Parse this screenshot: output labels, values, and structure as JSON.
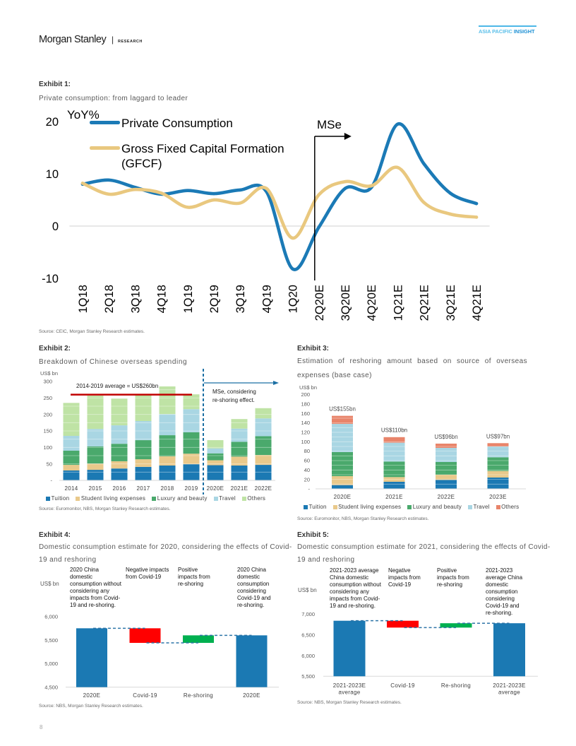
{
  "header": {
    "brand": "Morgan Stanley",
    "divider": "|",
    "section": "RESEARCH",
    "series_light": "ASIA PACIFIC ",
    "series_bold": "INSIGHT"
  },
  "exhibits": [
    {
      "label": "Exhibit 1:",
      "title": "Private consumption: from laggard to leader",
      "source": "Source: CEIC, Morgan Stanley Research estimates."
    },
    {
      "label": "Exhibit 2:",
      "title": "Breakdown of Chinese overseas spending",
      "source": "Source: Euromonitor, NBS, Morgan Stanley Research estimates."
    },
    {
      "label": "Exhibit 3:",
      "title": "Estimation of reshoring amount based on source of overseas expenses (base case)",
      "source": "Source: Euromonitor, NBS, Morgan Stanley Research estimates."
    },
    {
      "label": "Exhibit 4:",
      "title": "Domestic consumption estimate for 2020, considering the effects of Covid-19 and reshoring",
      "source": "Source: NBS, Morgan Stanley Research estimates."
    },
    {
      "label": "Exhibit 5:",
      "title": "Domestic consumption estimate for 2021, considering the effects of Covid-19 and reshoring",
      "source": "Source: NBS, Morgan Stanley Research estimates."
    }
  ],
  "page_number": "8",
  "colors": {
    "brand_blue": "#1b79b3",
    "insight_light_blue": "#5bbfe9",
    "insight_blue": "#1b8fd4",
    "average_line_red": "#c00000",
    "forecast_marker_blue": "#1b6fa3"
  },
  "chart_data": [
    {
      "type": "line",
      "title": "Private consumption: from laggard to leader",
      "xlabel": "",
      "ylabel": "YoY%",
      "categories": [
        "1Q18",
        "2Q18",
        "3Q18",
        "4Q18",
        "1Q19",
        "2Q19",
        "3Q19",
        "4Q19",
        "1Q20",
        "2Q20E",
        "3Q20E",
        "4Q20E",
        "1Q21E",
        "2Q21E",
        "3Q21E",
        "4Q21E"
      ],
      "series": [
        {
          "name": "Private Consumption",
          "color": "#1b7ab6",
          "values": [
            8.0,
            8.8,
            7.4,
            6.1,
            6.8,
            6.2,
            6.9,
            6.6,
            -8.2,
            -0.2,
            7.2,
            7.4,
            19.5,
            11.9,
            6.3,
            4.3
          ]
        },
        {
          "name": "Gross Fixed Capital Formation (GFCF)",
          "color": "#e9c87f",
          "values": [
            8.2,
            6.1,
            7.0,
            6.3,
            3.6,
            5.0,
            4.4,
            7.2,
            -2.3,
            6.0,
            8.5,
            7.7,
            11.2,
            4.5,
            2.3,
            1.7
          ]
        }
      ],
      "ylim": [
        -10,
        20
      ],
      "yticks": [
        -10,
        0,
        10,
        20
      ],
      "ytick_labels": [
        "-10",
        "0",
        "10",
        "20"
      ],
      "grid": "zero line only",
      "legend": "top-left",
      "annotation": {
        "label": "MSe",
        "starts_at": "2Q20E"
      }
    },
    {
      "type": "bar",
      "stacked": true,
      "title": "Breakdown of Chinese overseas spending",
      "xlabel": "",
      "ylabel": "US$ bn",
      "categories": [
        "2014",
        "2015",
        "2016",
        "2017",
        "2018",
        "2019",
        "2020E",
        "2021E",
        "2022E"
      ],
      "series": [
        {
          "name": "Tuition",
          "color": "#1b79b3",
          "values": [
            30,
            32,
            36,
            41,
            45,
            49,
            46,
            45,
            47
          ]
        },
        {
          "name": "Student living expenses",
          "color": "#e9c98b",
          "values": [
            17,
            19,
            22,
            23,
            28,
            32,
            15,
            27,
            30
          ]
        },
        {
          "name": "Luxury and beauty",
          "color": "#4aa96c",
          "values": [
            43,
            52,
            53,
            58,
            64,
            65,
            21,
            45,
            57
          ]
        },
        {
          "name": "Travel",
          "color": "#a9d6e3",
          "values": [
            45,
            53,
            56,
            58,
            64,
            70,
            15,
            40,
            54
          ]
        },
        {
          "name": "Others",
          "color": "#bfe3a5",
          "values": [
            100,
            101,
            81,
            81,
            84,
            45,
            25,
            29,
            31
          ]
        }
      ],
      "ylim": [
        0,
        300
      ],
      "yticks": [
        0,
        50,
        100,
        150,
        200,
        250,
        300
      ],
      "ytick_labels": [
        "-",
        "50",
        "100",
        "150",
        "200",
        "250",
        "300"
      ],
      "reference_line": {
        "value": 260,
        "label": "2014-2019 average = US$260bn",
        "span": [
          "2014",
          "2019"
        ],
        "color": "#c00000"
      },
      "annotation": {
        "lines": [
          "MSe, considering",
          "re-shoring effect."
        ],
        "starts_at": "2020E"
      },
      "legend": "bottom"
    },
    {
      "type": "bar",
      "stacked": true,
      "title": "Estimation of reshoring amount based on source of overseas expenses (base case)",
      "xlabel": "",
      "ylabel": "US$ bn",
      "categories": [
        "2020E",
        "2021E",
        "2022E",
        "2023E"
      ],
      "series": [
        {
          "name": "Tuition",
          "color": "#1b79b3",
          "values": [
            8,
            15,
            19,
            24
          ]
        },
        {
          "name": "Student living expenses",
          "color": "#e9c98b",
          "values": [
            19,
            10,
            11,
            14
          ]
        },
        {
          "name": "Luxury and beauty",
          "color": "#4aa96c",
          "values": [
            51,
            33,
            27,
            29
          ]
        },
        {
          "name": "Travel",
          "color": "#a9d6e3",
          "values": [
            60,
            40,
            30,
            23
          ]
        },
        {
          "name": "Others",
          "color": "#e8846a",
          "values": [
            17,
            12,
            9,
            7
          ]
        }
      ],
      "totals": [
        155,
        110,
        96,
        97
      ],
      "data_labels": [
        "US$155bn",
        "US$110bn",
        "US$96bn",
        "US$97bn"
      ],
      "ylim": [
        0,
        200
      ],
      "yticks": [
        0,
        20,
        40,
        60,
        80,
        100,
        120,
        140,
        160,
        180,
        200
      ],
      "ytick_labels": [
        "-",
        "20",
        "40",
        "60",
        "80",
        "100",
        "120",
        "140",
        "160",
        "180",
        "200"
      ],
      "legend": "bottom"
    },
    {
      "type": "waterfall",
      "title": "Domestic consumption estimate for 2020, considering the effects of Covid-19 and reshoring",
      "xlabel": "",
      "ylabel": "US$ bn",
      "categories": [
        "2020E",
        "Covid-19",
        "Re-shoring",
        "2020E"
      ],
      "measures": [
        "total",
        "relative",
        "relative",
        "total"
      ],
      "values": [
        5750,
        -310,
        160,
        5600
      ],
      "colors": {
        "total": "#1b79b3",
        "decrease": "#ff0000",
        "increase": "#00b050",
        "connector": "#2e75a8"
      },
      "ylim": [
        4500,
        6000
      ],
      "yticks": [
        4500,
        5000,
        5500,
        6000
      ],
      "ytick_labels": [
        "4,500",
        "5,000",
        "5,500",
        "6,000"
      ],
      "column_notes": [
        "2020 China\ndomestic\nconsumption without\nconsidering any\nimpacts from Covid-\n19 and re-shoring.",
        "Negative impacts\nfrom Covid-19",
        "Positive\nimpacts from\nre-shoring",
        "2020 China\ndomestic\nconsumption\nconsidering\nCovid-19 and\nre-shoring."
      ]
    },
    {
      "type": "waterfall",
      "title": "Domestic consumption estimate for 2021, considering the effects of Covid-19 and reshoring",
      "xlabel": "",
      "ylabel": "US$ bn",
      "categories": [
        [
          "2021-2023E",
          "average"
        ],
        [
          "Covid-19"
        ],
        [
          "Re-shoring"
        ],
        [
          "2021-2023E",
          "average"
        ]
      ],
      "measures": [
        "total",
        "relative",
        "relative",
        "total"
      ],
      "values": [
        6840,
        -165,
        105,
        6780
      ],
      "colors": {
        "total": "#1b79b3",
        "decrease": "#ff0000",
        "increase": "#00b050",
        "connector": "#2e75a8"
      },
      "ylim": [
        5500,
        7000
      ],
      "yticks": [
        5500,
        6000,
        6500,
        7000
      ],
      "ytick_labels": [
        "5,500",
        "6,000",
        "6,500",
        "7,000"
      ],
      "column_notes": [
        "2021-2023 average\nChina domestic\nconsumption without\nconsidering any\nimpacts from Covid-\n19 and re-shoring.",
        "Negative\nimpacts from\nCovid-19",
        "Positive\nimpacts from\nre-shoring",
        "2021-2023\naverage China\ndomestic\nconsumption\nconsidering\nCovid-19 and\nre-shoring."
      ]
    }
  ]
}
